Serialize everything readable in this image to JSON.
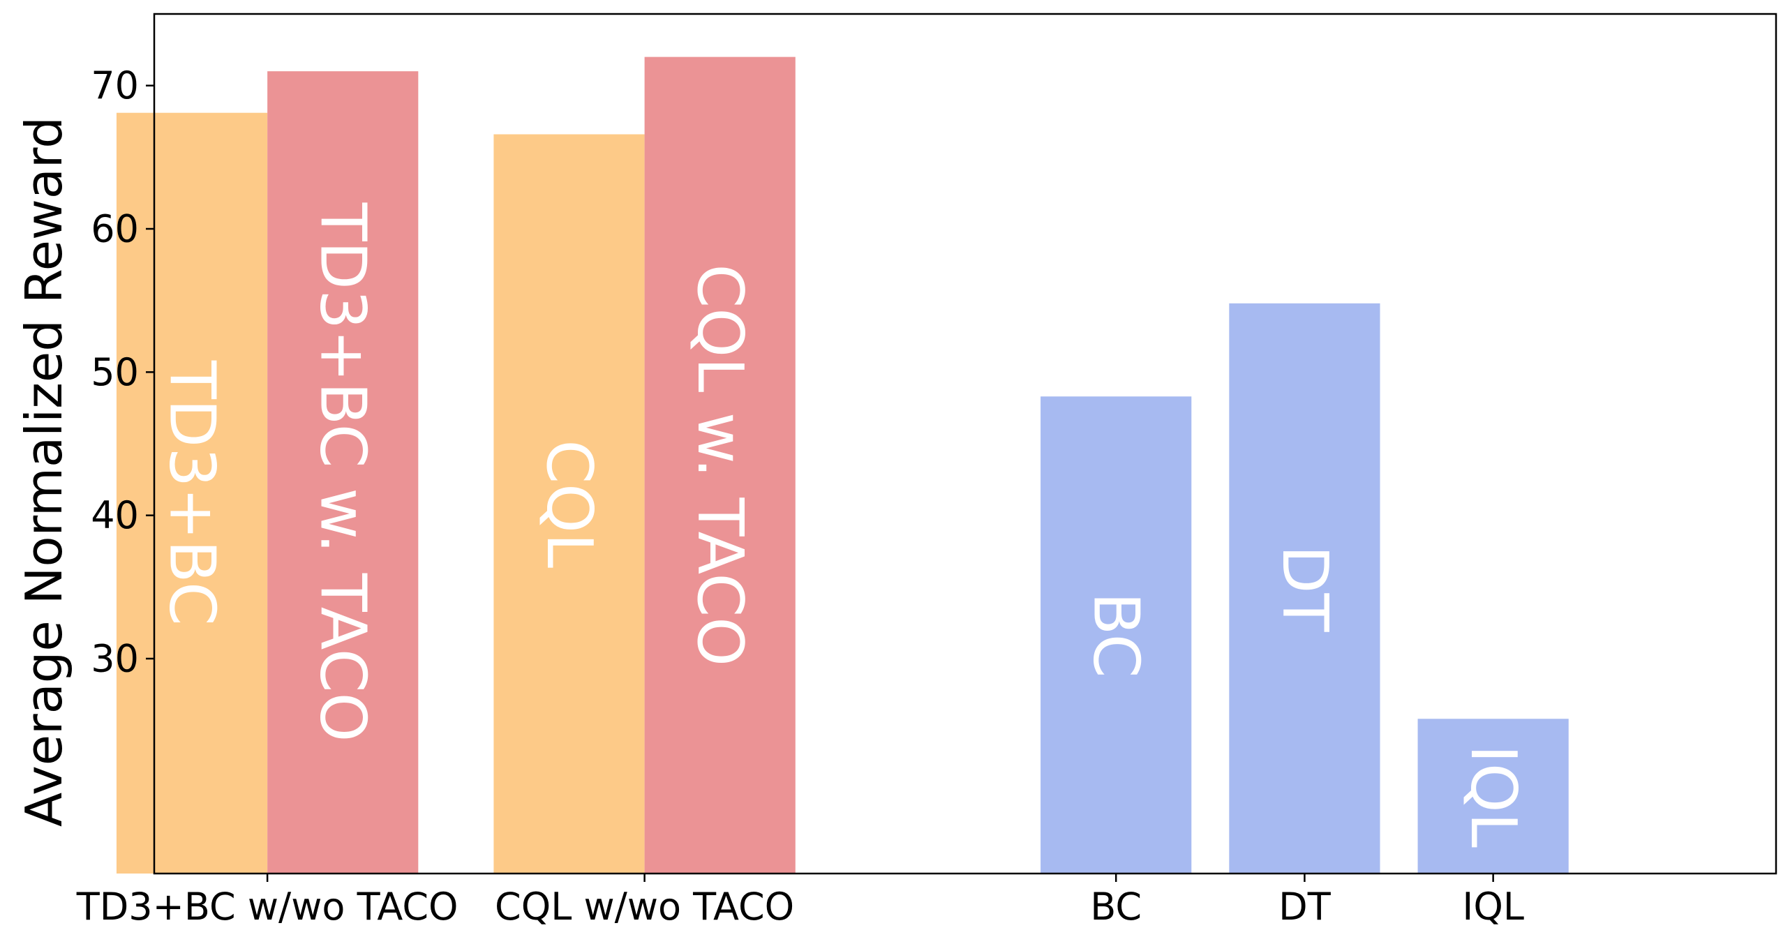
{
  "chart_data": {
    "type": "bar",
    "ylabel": "Average Normalized Reward",
    "xlabel": "",
    "title": "",
    "ylim": [
      15,
      75
    ],
    "yticks": [
      30,
      40,
      50,
      60,
      70
    ],
    "grid": false,
    "legend": "none",
    "groups": [
      {
        "category": "TD3+BC w/wo TACO",
        "bars": [
          {
            "label": "TD3+BC",
            "value": 68.1,
            "color": "#fdca88"
          },
          {
            "label": "TD3+BC w. TACO",
            "value": 71.0,
            "color": "#eb9395"
          }
        ]
      },
      {
        "category": "CQL w/wo TACO",
        "bars": [
          {
            "label": "CQL",
            "value": 66.6,
            "color": "#fdca88"
          },
          {
            "label": "CQL w. TACO",
            "value": 72.0,
            "color": "#eb9395"
          }
        ]
      },
      {
        "category": "BC",
        "bars": [
          {
            "label": "BC",
            "value": 48.3,
            "color": "#a7baf1"
          }
        ]
      },
      {
        "category": "DT",
        "bars": [
          {
            "label": "DT",
            "value": 54.8,
            "color": "#a7baf1"
          }
        ]
      },
      {
        "category": "IQL",
        "bars": [
          {
            "label": "IQL",
            "value": 25.8,
            "color": "#a7baf1"
          }
        ]
      }
    ]
  }
}
